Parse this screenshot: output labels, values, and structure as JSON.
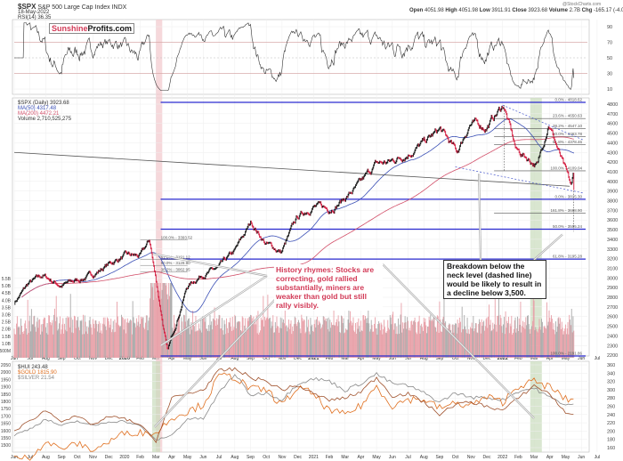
{
  "header": {
    "symbol": "$SPX",
    "name": "S&P 500 Large Cap Index INDX",
    "date": "18-May-2022",
    "rsi_label": "RSI(14) 36.35",
    "credit": "@StockCharts.com",
    "ohlc": [
      {
        "k": "Open",
        "v": "4051.98"
      },
      {
        "k": "High",
        "v": "4051.98"
      },
      {
        "k": "Low",
        "v": "3911.91"
      },
      {
        "k": "Close",
        "v": "3923.68"
      },
      {
        "k": "Volume",
        "v": "2.7B"
      },
      {
        "k": "Chg",
        "v": "-165.17 (-4.04%)"
      }
    ]
  },
  "logo": {
    "a": "Sunshine",
    "b": "Profits.com"
  },
  "legend_main": [
    "$SPX (Daily) 3923.68",
    "MA(50) 4317.48",
    "MA(200) 4472.21",
    "Volume 2,710,525,275"
  ],
  "legend_lower": [
    "$HUI 243.48",
    "$GOLD 1815.90",
    "$SILVER 21.54"
  ],
  "annotations": {
    "history": "History rhymes: Stocks are correcting, gold rallied substantially, miners are weaker than gold but still rally visibly.",
    "breakdown": "Breakdown below the neck level (dashed line) would be likely to result in a decline below 3,500."
  },
  "colors": {
    "price_up": "#111111",
    "price_down": "#d2183c",
    "ma50": "#3a4fb5",
    "ma200": "#d2506a",
    "level": "#2a2ad0",
    "hui": "#333333",
    "gold": "#e07020",
    "silver": "#888888",
    "volume": "#e8a0a8",
    "highlight_pink": "#f2c8cc",
    "highlight_green": "#c9dcbc"
  },
  "chart_data": [
    {
      "type": "line",
      "panel": "RSI",
      "yticks": [
        90,
        70,
        50,
        30,
        10
      ],
      "ylim": [
        0,
        100
      ],
      "reference_lines": [
        70,
        30
      ]
    },
    {
      "type": "candlestick",
      "panel": "$SPX daily",
      "yticks": [
        4800,
        4700,
        4600,
        4500,
        4400,
        4300,
        4200,
        4100,
        4000,
        3900,
        3800,
        3700,
        3600,
        3500,
        3400,
        3300,
        3200,
        3100,
        3000,
        2900,
        2800,
        2700,
        2600,
        2500,
        2400,
        2300,
        2200
      ],
      "ylim": [
        2190,
        4830
      ],
      "anchors": [
        [
          "2019-06-01",
          2750
        ],
        [
          "2019-06-28",
          2942
        ],
        [
          "2019-07-26",
          3025
        ],
        [
          "2019-08-30",
          2926
        ],
        [
          "2019-09-30",
          2977
        ],
        [
          "2019-10-31",
          3038
        ],
        [
          "2019-11-29",
          3141
        ],
        [
          "2019-12-31",
          3231
        ],
        [
          "2020-01-31",
          3226
        ],
        [
          "2020-02-19",
          3386
        ],
        [
          "2020-03-23",
          2237
        ],
        [
          "2020-04-30",
          2912
        ],
        [
          "2020-05-29",
          3044
        ],
        [
          "2020-06-30",
          3100
        ],
        [
          "2020-07-31",
          3271
        ],
        [
          "2020-09-02",
          3580
        ],
        [
          "2020-09-30",
          3363
        ],
        [
          "2020-10-30",
          3270
        ],
        [
          "2020-11-30",
          3622
        ],
        [
          "2020-12-31",
          3756
        ],
        [
          "2021-01-29",
          3714
        ],
        [
          "2021-02-26",
          3811
        ],
        [
          "2021-03-31",
          3973
        ],
        [
          "2021-04-30",
          4181
        ],
        [
          "2021-05-28",
          4204
        ],
        [
          "2021-06-30",
          4298
        ],
        [
          "2021-07-30",
          4395
        ],
        [
          "2021-09-02",
          4537
        ],
        [
          "2021-10-04",
          4300
        ],
        [
          "2021-10-29",
          4605
        ],
        [
          "2021-11-30",
          4567
        ],
        [
          "2022-01-03",
          4796
        ],
        [
          "2022-01-27",
          4326
        ],
        [
          "2022-02-24",
          4225
        ],
        [
          "2022-03-08",
          4170
        ],
        [
          "2022-03-29",
          4631
        ],
        [
          "2022-04-29",
          4132
        ],
        [
          "2022-05-12",
          3930
        ],
        [
          "2022-05-17",
          4088
        ],
        [
          "2022-05-18",
          3923
        ]
      ],
      "levels": [
        {
          "label": "0.0% - 4818.62",
          "v": 4818.62,
          "major": true
        },
        {
          "label": "23.6% - 4650.63",
          "v": 4650.63
        },
        {
          "label": "38.2% - 4547.10",
          "v": 4547.1
        },
        {
          "label": "50.0% - 4463.78",
          "v": 4463.78
        },
        {
          "label": "61.8% - 4378.46",
          "v": 4378.46
        },
        {
          "label": "100.0% - 4109.04",
          "v": 4109.04
        },
        {
          "label": "0.0% - 3815.30",
          "v": 3815.3,
          "major": true
        },
        {
          "label": "161.8% - 3668.90",
          "v": 3668.9
        },
        {
          "label": "50.0% - 3505.24",
          "v": 3505.24,
          "major": true
        },
        {
          "label": "61.8% - 3195.28",
          "v": 3195.28,
          "major": true
        },
        {
          "label": "100.0% - 2191.86",
          "v": 2191.86,
          "major": true
        }
      ],
      "levels_2020": [
        {
          "label": "100.0% - 3393.52",
          "v": 3393.52
        },
        {
          "label": "61.8% - 3191.12",
          "v": 3191.12
        },
        {
          "label": "50.0% - 3129.90",
          "v": 3129.9
        },
        {
          "label": "38.2% - 3062.95",
          "v": 3062.95
        }
      ],
      "volume_ticks": [
        "5.5B",
        "5.0B",
        "4.5B",
        "4.0B",
        "3.5B",
        "3.0B",
        "2.5B",
        "2.0B",
        "1.5B",
        "1.0B",
        "500M"
      ]
    },
    {
      "type": "line",
      "panel": "$HUI / $GOLD / $SILVER",
      "yticks_right": [
        360,
        340,
        320,
        300,
        280,
        260,
        240,
        220,
        200,
        180,
        160
      ],
      "yticks_left": [
        2050,
        2000,
        1950,
        1900,
        1850,
        1800,
        1750,
        1700,
        1650,
        1600,
        1550,
        1500
      ],
      "hui": [
        200,
        225,
        250,
        225,
        235,
        215,
        235,
        230,
        215,
        175,
        280,
        290,
        300,
        345,
        350,
        330,
        320,
        300,
        310,
        290,
        275,
        280,
        295,
        330,
        285,
        290,
        270,
        240,
        265,
        270,
        260,
        250,
        280,
        310,
        290,
        243
      ],
      "gold": [
        1410,
        1415,
        1520,
        1475,
        1510,
        1465,
        1520,
        1585,
        1585,
        1580,
        1690,
        1730,
        1780,
        1975,
        1970,
        1885,
        1880,
        1775,
        1895,
        1850,
        1735,
        1710,
        1770,
        1905,
        1770,
        1815,
        1815,
        1755,
        1785,
        1775,
        1830,
        1795,
        1910,
        1935,
        1900,
        1815
      ],
      "silver": [
        15,
        16.4,
        18.4,
        17,
        18,
        17,
        17.9,
        18,
        16.9,
        14,
        15,
        18.5,
        18.5,
        24,
        28,
        23.5,
        24,
        22.5,
        26,
        27,
        26.5,
        24.5,
        26,
        28,
        26,
        25.5,
        24,
        22,
        24,
        23,
        23,
        22.5,
        24.3,
        25,
        23,
        21.5
      ]
    },
    {
      "x_ticks": [
        "Jun",
        "Jul",
        "Aug",
        "Sep",
        "Oct",
        "Nov",
        "Dec",
        "2020",
        "Feb",
        "Mar",
        "Apr",
        "May",
        "Jun",
        "Jul",
        "Aug",
        "Sep",
        "Oct",
        "Nov",
        "Dec",
        "2021",
        "Feb",
        "Mar",
        "Apr",
        "May",
        "Jun",
        "Jul",
        "Aug",
        "Sep",
        "Oct",
        "Nov",
        "Dec",
        "2022",
        "Feb",
        "Mar",
        "Apr",
        "May",
        "Jun",
        "Jul"
      ]
    }
  ]
}
